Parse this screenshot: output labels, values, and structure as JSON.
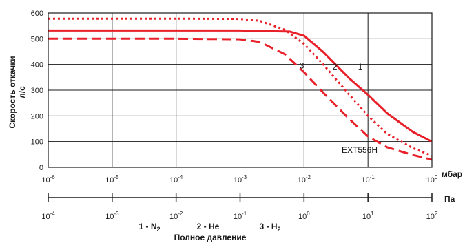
{
  "chart_data": {
    "type": "line",
    "ylabel_line1": "Скорость откачки",
    "ylabel_line2": "л/с",
    "xlabel": "Полное давление",
    "x_unit_top": "мбар",
    "x_unit_bottom": "Па",
    "model_label": "EXT556H",
    "y_ticks": [
      "0",
      "100",
      "200",
      "300",
      "400",
      "500",
      "600"
    ],
    "ylim": [
      0,
      600
    ],
    "x_scale": "log",
    "xlim_mbar": [
      1e-06,
      1
    ],
    "x_ticks_top": [
      {
        "base": "10",
        "exp": "-6"
      },
      {
        "base": "10",
        "exp": "-5"
      },
      {
        "base": "10",
        "exp": "-4"
      },
      {
        "base": "10",
        "exp": "-3"
      },
      {
        "base": "10",
        "exp": "-2"
      },
      {
        "base": "10",
        "exp": "-1"
      },
      {
        "base": "10",
        "exp": "0"
      }
    ],
    "x_ticks_bottom": [
      {
        "base": "10",
        "exp": "-4"
      },
      {
        "base": "10",
        "exp": "-3"
      },
      {
        "base": "10",
        "exp": "-2"
      },
      {
        "base": "10",
        "exp": "-1"
      },
      {
        "base": "10",
        "exp": "0"
      },
      {
        "base": "10",
        "exp": "1"
      },
      {
        "base": "10",
        "exp": "2"
      }
    ],
    "legend": [
      {
        "id": "1",
        "text": "1 - N",
        "sub": "2"
      },
      {
        "id": "2",
        "text": "2 - He",
        "sub": ""
      },
      {
        "id": "3",
        "text": "3 - H",
        "sub": "2"
      }
    ],
    "color": "#e8202a",
    "grid": true,
    "series": [
      {
        "label": "1",
        "dash": "solid",
        "x": [
          1e-06,
          0.0001,
          0.001,
          0.006,
          0.01,
          0.02,
          0.05,
          0.1,
          0.2,
          0.5,
          1
        ],
        "y": [
          532,
          532,
          532,
          528,
          512,
          448,
          348,
          282,
          210,
          138,
          100
        ]
      },
      {
        "label": "2",
        "dash": "dotted",
        "x": [
          1e-06,
          0.0001,
          0.001,
          0.002,
          0.005,
          0.01,
          0.02,
          0.05,
          0.1,
          0.2,
          0.5,
          1
        ],
        "y": [
          578,
          578,
          577,
          570,
          535,
          480,
          400,
          285,
          200,
          130,
          75,
          45
        ]
      },
      {
        "label": "3",
        "dash": "dashed",
        "x": [
          1e-06,
          0.0001,
          0.001,
          0.002,
          0.005,
          0.01,
          0.02,
          0.05,
          0.1,
          0.2,
          0.5,
          1
        ],
        "y": [
          500,
          500,
          498,
          488,
          440,
          370,
          290,
          190,
          120,
          78,
          48,
          30
        ]
      }
    ],
    "curve_labels": [
      {
        "text": "1",
        "x": 0.07,
        "y": 380
      },
      {
        "text": "2",
        "x": 0.028,
        "y": 380
      },
      {
        "text": "3",
        "x": 0.0085,
        "y": 385
      }
    ]
  }
}
